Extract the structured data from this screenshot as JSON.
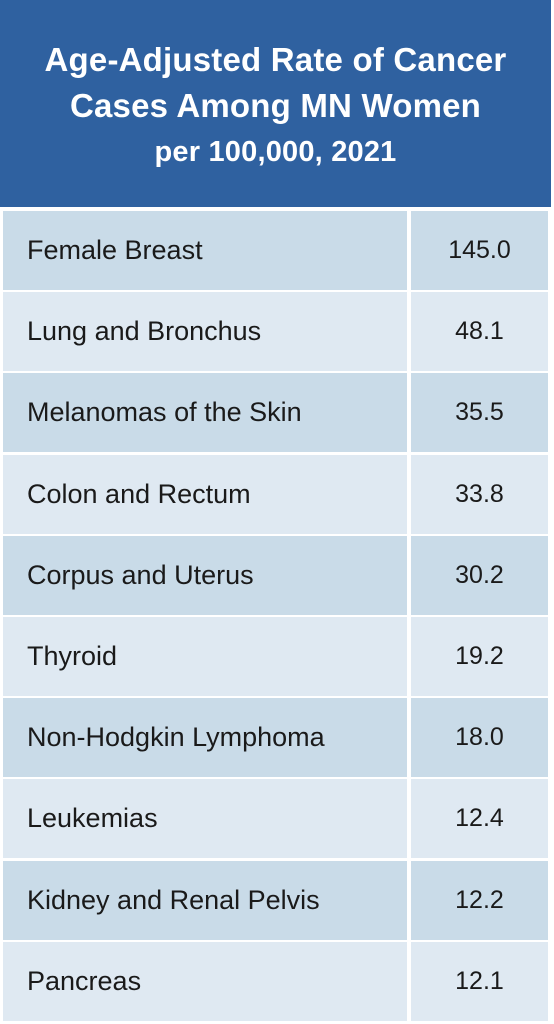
{
  "chart_data": {
    "type": "table",
    "title_lines": [
      "Age-Adjusted Rate of Cancer",
      "Cases Among MN Women",
      "per 100,000, 2021"
    ],
    "rows": [
      {
        "label": "Female Breast",
        "value": "145.0"
      },
      {
        "label": "Lung and Bronchus",
        "value": "48.1"
      },
      {
        "label": "Melanomas of the Skin",
        "value": "35.5"
      },
      {
        "label": "Colon and Rectum",
        "value": "33.8"
      },
      {
        "label": "Corpus and Uterus",
        "value": "30.2"
      },
      {
        "label": "Thyroid",
        "value": "19.2"
      },
      {
        "label": "Non-Hodgkin Lymphoma",
        "value": "18.0"
      },
      {
        "label": "Leukemias",
        "value": "12.4"
      },
      {
        "label": "Kidney and Renal Pelvis",
        "value": "12.2"
      },
      {
        "label": "Pancreas",
        "value": "12.1"
      }
    ]
  },
  "colors": {
    "header_bg": "#2f61a0",
    "row_dark": "#c9dbe8",
    "row_light": "#dfe9f2"
  }
}
